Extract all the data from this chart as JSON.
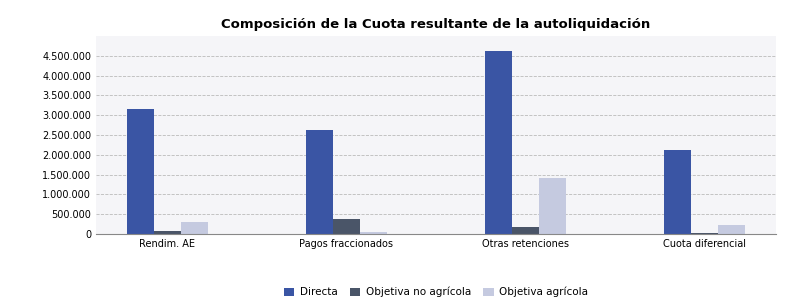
{
  "title": "Composición de la Cuota resultante de la autoliquidación",
  "categories": [
    "Rendim. AE",
    "Pagos fraccionados",
    "Otras retenciones",
    "Cuota diferencial"
  ],
  "series": {
    "Directa": [
      3150000,
      2620000,
      4620000,
      2120000
    ],
    "Objetiva no agrícola": [
      75000,
      370000,
      175000,
      35000
    ],
    "Objetiva agrícola": [
      310000,
      45000,
      1420000,
      230000
    ]
  },
  "colors": {
    "Directa": "#3A55A4",
    "Objetiva no agrícola": "#4A5568",
    "Objetiva agrícola": "#C5CAE0"
  },
  "ylim": [
    0,
    5000000
  ],
  "yticks": [
    0,
    500000,
    1000000,
    1500000,
    2000000,
    2500000,
    3000000,
    3500000,
    4000000,
    4500000
  ],
  "bar_width": 0.15,
  "background_color": "#FFFFFF",
  "plot_bg_color": "#F5F5F8",
  "grid_color": "#BBBBBB",
  "title_fontsize": 9.5,
  "legend_fontsize": 7.5,
  "tick_fontsize": 7
}
